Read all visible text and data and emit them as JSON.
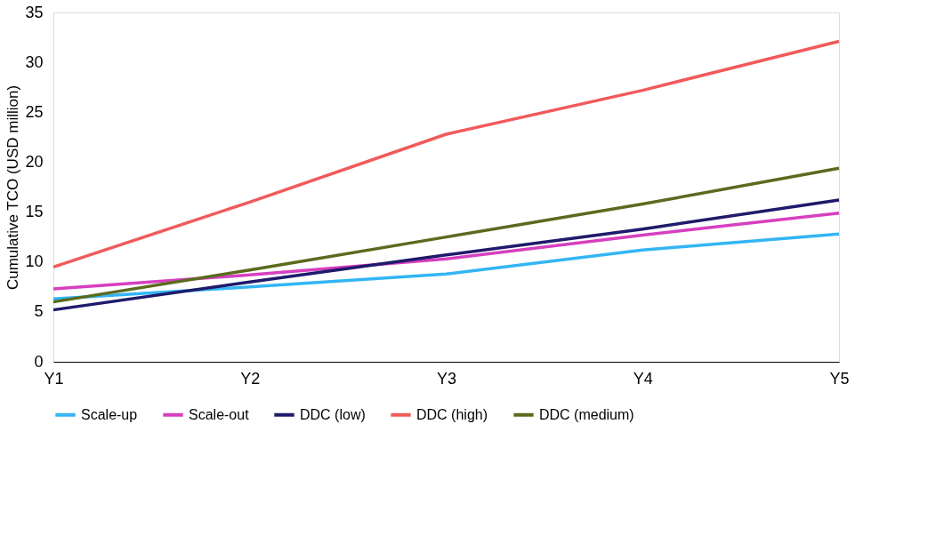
{
  "chart_data": {
    "type": "line",
    "ylabel": "Cumulative TCO (USD million)",
    "categories": [
      "Y1",
      "Y2",
      "Y3",
      "Y4",
      "Y5"
    ],
    "series": [
      {
        "name": "Scale-up",
        "color": "#33b5f5",
        "values": [
          6.3,
          7.5,
          8.8,
          11.2,
          12.8
        ]
      },
      {
        "name": "Scale-out",
        "color": "#d63fbf",
        "values": [
          7.3,
          8.7,
          10.3,
          12.7,
          14.9
        ]
      },
      {
        "name": "DDC (low)",
        "color": "#1f1a6b",
        "values": [
          5.2,
          8.0,
          10.7,
          13.3,
          16.2
        ]
      },
      {
        "name": "DDC (high)",
        "color": "#f15a5a",
        "values": [
          9.5,
          16.0,
          22.8,
          27.2,
          32.1
        ]
      },
      {
        "name": "DDC (medium)",
        "color": "#5a6b1e",
        "values": [
          6.0,
          9.2,
          12.5,
          15.8,
          19.4
        ]
      }
    ],
    "ylim": [
      0,
      35
    ],
    "yticks": [
      0,
      5,
      10,
      15,
      20,
      25,
      30,
      35
    ],
    "grid": false,
    "legend": "bottom",
    "marker": "none",
    "line_style": "solid"
  }
}
